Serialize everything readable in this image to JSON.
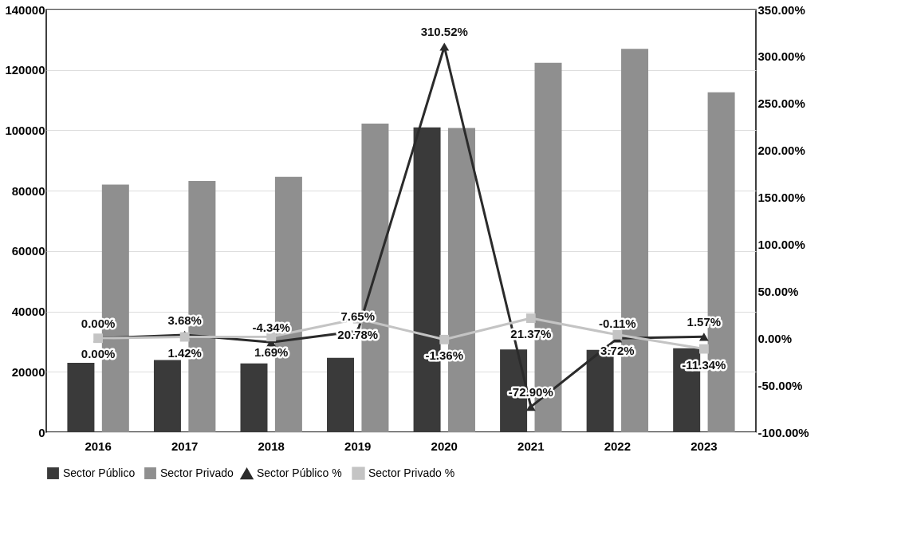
{
  "chart_data": {
    "type": "bar",
    "categories": [
      "2016",
      "2017",
      "2018",
      "2019",
      "2020",
      "2021",
      "2022",
      "2023"
    ],
    "series": [
      {
        "name": "Sector Público",
        "color": "#3a3a3a",
        "values": [
          23000,
          23900,
          22800,
          24600,
          101000,
          27400,
          27300,
          27800
        ]
      },
      {
        "name": "Sector Privado",
        "color": "#8f8f8f",
        "values": [
          82000,
          83200,
          84600,
          102200,
          100800,
          122400,
          127000,
          112600
        ]
      },
      {
        "name": "Sector Público %",
        "type": "line",
        "axis": "y2",
        "color": "#2b2b2b",
        "marker": "triangle",
        "values": [
          0,
          3.68,
          -4.34,
          7.65,
          310.52,
          -72.9,
          -0.11,
          1.57
        ],
        "value_labels": [
          "0.00%",
          "3.68%",
          "-4.34%",
          "7.65%",
          "310.52%",
          "-72.90%",
          "-0.11%",
          "1.57%"
        ]
      },
      {
        "name": "Sector Privado %",
        "type": "line",
        "axis": "y2",
        "color": "#c4c4c4",
        "marker": "square",
        "values": [
          0,
          1.42,
          1.69,
          20.78,
          -1.36,
          21.37,
          3.72,
          -11.34
        ],
        "value_labels": [
          "0.00%",
          "1.42%",
          "1.69%",
          "20.78%",
          "-1.36%",
          "21.37%",
          "3.72%",
          "-11.34%"
        ]
      }
    ],
    "ylim": [
      0,
      140000
    ],
    "yticks": [
      0,
      20000,
      40000,
      60000,
      80000,
      100000,
      120000,
      140000
    ],
    "y2lim": [
      -100,
      350
    ],
    "y2ticks": [
      {
        "value": -100,
        "label": "-100.00%"
      },
      {
        "value": -50,
        "label": "-50.00%"
      },
      {
        "value": 0,
        "label": "0.00%"
      },
      {
        "value": 50,
        "label": "50.00%"
      },
      {
        "value": 100,
        "label": "100.00%"
      },
      {
        "value": 150,
        "label": "150.00%"
      },
      {
        "value": 200,
        "label": "200.00%"
      },
      {
        "value": 250,
        "label": "250.00%"
      },
      {
        "value": 300,
        "label": "300.00%"
      },
      {
        "value": 350,
        "label": "350.00%"
      }
    ],
    "grid": "y",
    "legend": "bottom",
    "line_style": "solid"
  }
}
